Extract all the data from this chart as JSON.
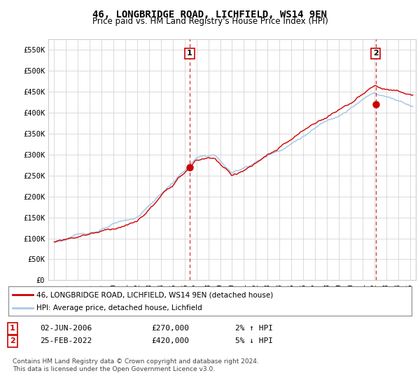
{
  "title": "46, LONGBRIDGE ROAD, LICHFIELD, WS14 9EN",
  "subtitle": "Price paid vs. HM Land Registry's House Price Index (HPI)",
  "ylim": [
    0,
    575000
  ],
  "xlim_start": 1994.5,
  "xlim_end": 2025.5,
  "sale1_date": 2006.42,
  "sale1_price": 270000,
  "sale1_label": "1",
  "sale2_date": 2022.12,
  "sale2_price": 420000,
  "sale2_label": "2",
  "hpi_line_color": "#a8c8e8",
  "price_line_color": "#cc0000",
  "sale_dot_color": "#cc0000",
  "grid_color": "#cccccc",
  "background_color": "#ffffff",
  "legend_label1": "46, LONGBRIDGE ROAD, LICHFIELD, WS14 9EN (detached house)",
  "legend_label2": "HPI: Average price, detached house, Lichfield",
  "annotation1_num": "1",
  "annotation1": "02-JUN-2006",
  "annotation1_price": "£270,000",
  "annotation1_hpi": "2% ↑ HPI",
  "annotation2_num": "2",
  "annotation2": "25-FEB-2022",
  "annotation2_price": "£420,000",
  "annotation2_hpi": "5% ↓ HPI",
  "footer": "Contains HM Land Registry data © Crown copyright and database right 2024.\nThis data is licensed under the Open Government Licence v3.0.",
  "title_fontsize": 10,
  "subtitle_fontsize": 8.5,
  "tick_fontsize": 7.5,
  "annot_fontsize": 8
}
